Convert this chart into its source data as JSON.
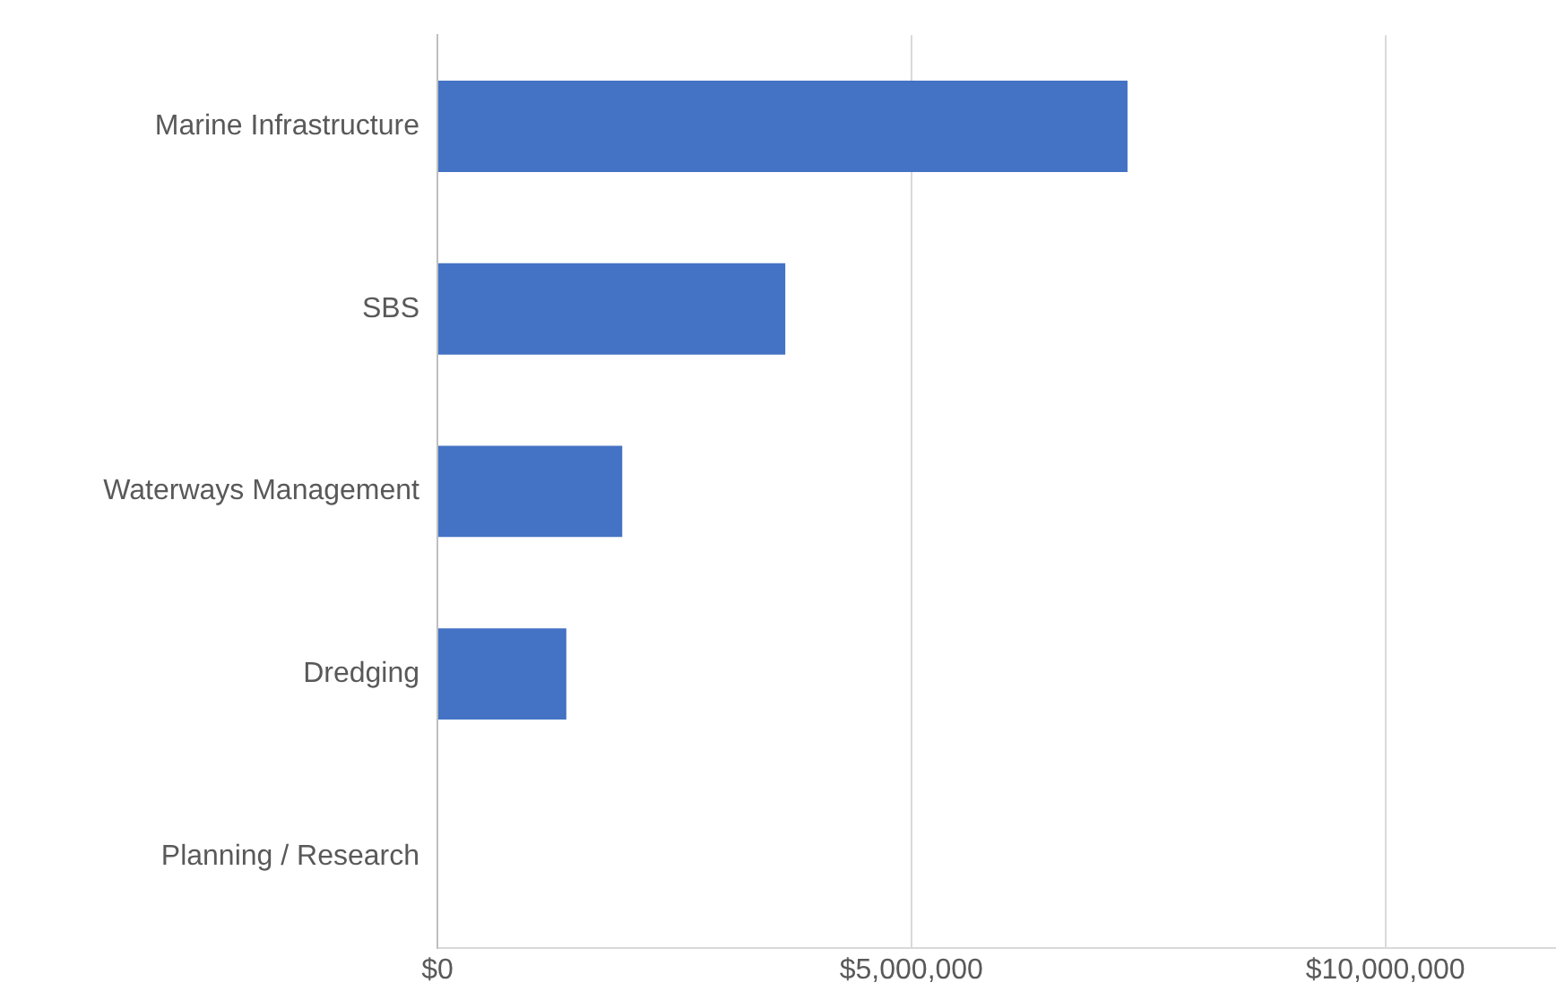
{
  "chart_data": {
    "type": "bar",
    "orientation": "horizontal",
    "categories": [
      "Marine Infrastructure",
      "SBS",
      "Waterways Management",
      "Dredging",
      "Planning / Research"
    ],
    "values": [
      7280000,
      3670000,
      1950000,
      1360000,
      0
    ],
    "color": "#4472c4",
    "xlim": [
      0,
      11800000
    ],
    "xticks": [
      {
        "value": 0,
        "label": "$0"
      },
      {
        "value": 5000000,
        "label": "$5,000,000"
      },
      {
        "value": 10000000,
        "label": "$10,000,000"
      }
    ],
    "grid": "x"
  }
}
